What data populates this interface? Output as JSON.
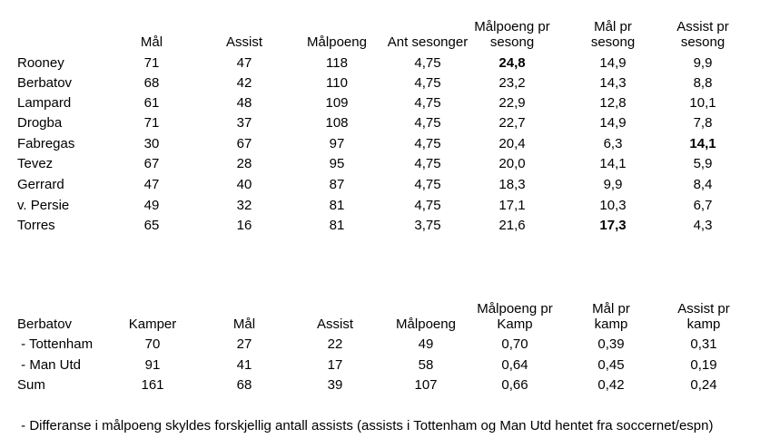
{
  "table1": {
    "headers": [
      "Mål",
      "Assist",
      "Målpoeng",
      "Ant sesonger",
      "Målpoeng pr sesong",
      "Mål pr sesong",
      "Assist pr sesong"
    ],
    "header_lines": [
      [
        "Mål"
      ],
      [
        "Assist"
      ],
      [
        "Målpoeng"
      ],
      [
        "Ant sesonger"
      ],
      [
        "Målpoeng pr",
        "sesong"
      ],
      [
        "Mål pr",
        "sesong"
      ],
      [
        "Assist pr",
        "sesong"
      ]
    ],
    "rows": [
      {
        "name": "Rooney",
        "values": [
          "71",
          "47",
          "118",
          "4,75",
          "24,8",
          "14,9",
          "9,9"
        ]
      },
      {
        "name": "Berbatov",
        "values": [
          "68",
          "42",
          "110",
          "4,75",
          "23,2",
          "14,3",
          "8,8"
        ]
      },
      {
        "name": "Lampard",
        "values": [
          "61",
          "48",
          "109",
          "4,75",
          "22,9",
          "12,8",
          "10,1"
        ]
      },
      {
        "name": "Drogba",
        "values": [
          "71",
          "37",
          "108",
          "4,75",
          "22,7",
          "14,9",
          "7,8"
        ]
      },
      {
        "name": "Fabregas",
        "values": [
          "30",
          "67",
          "97",
          "4,75",
          "20,4",
          "6,3",
          "14,1"
        ]
      },
      {
        "name": "Tevez",
        "values": [
          "67",
          "28",
          "95",
          "4,75",
          "20,0",
          "14,1",
          "5,9"
        ]
      },
      {
        "name": "Gerrard",
        "values": [
          "47",
          "40",
          "87",
          "4,75",
          "18,3",
          "9,9",
          "8,4"
        ]
      },
      {
        "name": "v. Persie",
        "values": [
          "49",
          "32",
          "81",
          "4,75",
          "17,1",
          "10,3",
          "6,7"
        ]
      },
      {
        "name": "Torres",
        "values": [
          "65",
          "16",
          "81",
          "3,75",
          "21,6",
          "17,3",
          "4,3"
        ]
      }
    ],
    "bold_cells": [
      [
        0,
        4
      ],
      [
        4,
        6
      ],
      [
        8,
        5
      ]
    ]
  },
  "table2": {
    "title": "Berbatov",
    "headers": [
      "Kamper",
      "Mål",
      "Assist",
      "Målpoeng",
      "Målpoeng pr Kamp",
      "Mål pr kamp",
      "Assist pr kamp"
    ],
    "header_lines": [
      [
        "Kamper"
      ],
      [
        "Mål"
      ],
      [
        "Assist"
      ],
      [
        "Målpoeng"
      ],
      [
        "Målpoeng pr",
        "Kamp"
      ],
      [
        "Mål pr",
        "kamp"
      ],
      [
        "Assist pr",
        "kamp"
      ]
    ],
    "rows": [
      {
        "name": " - Tottenham",
        "values": [
          "70",
          "27",
          "22",
          "49",
          "0,70",
          "0,39",
          "0,31"
        ]
      },
      {
        "name": " - Man Utd",
        "values": [
          "91",
          "41",
          "17",
          "58",
          "0,64",
          "0,45",
          "0,19"
        ]
      },
      {
        "name": "Sum",
        "values": [
          "161",
          "68",
          "39",
          "107",
          "0,66",
          "0,42",
          "0,24"
        ]
      }
    ]
  },
  "footnote": " - Differanse i målpoeng skyldes forskjellig antall assists (assists i Tottenham og Man Utd hentet fra soccernet/espn)"
}
